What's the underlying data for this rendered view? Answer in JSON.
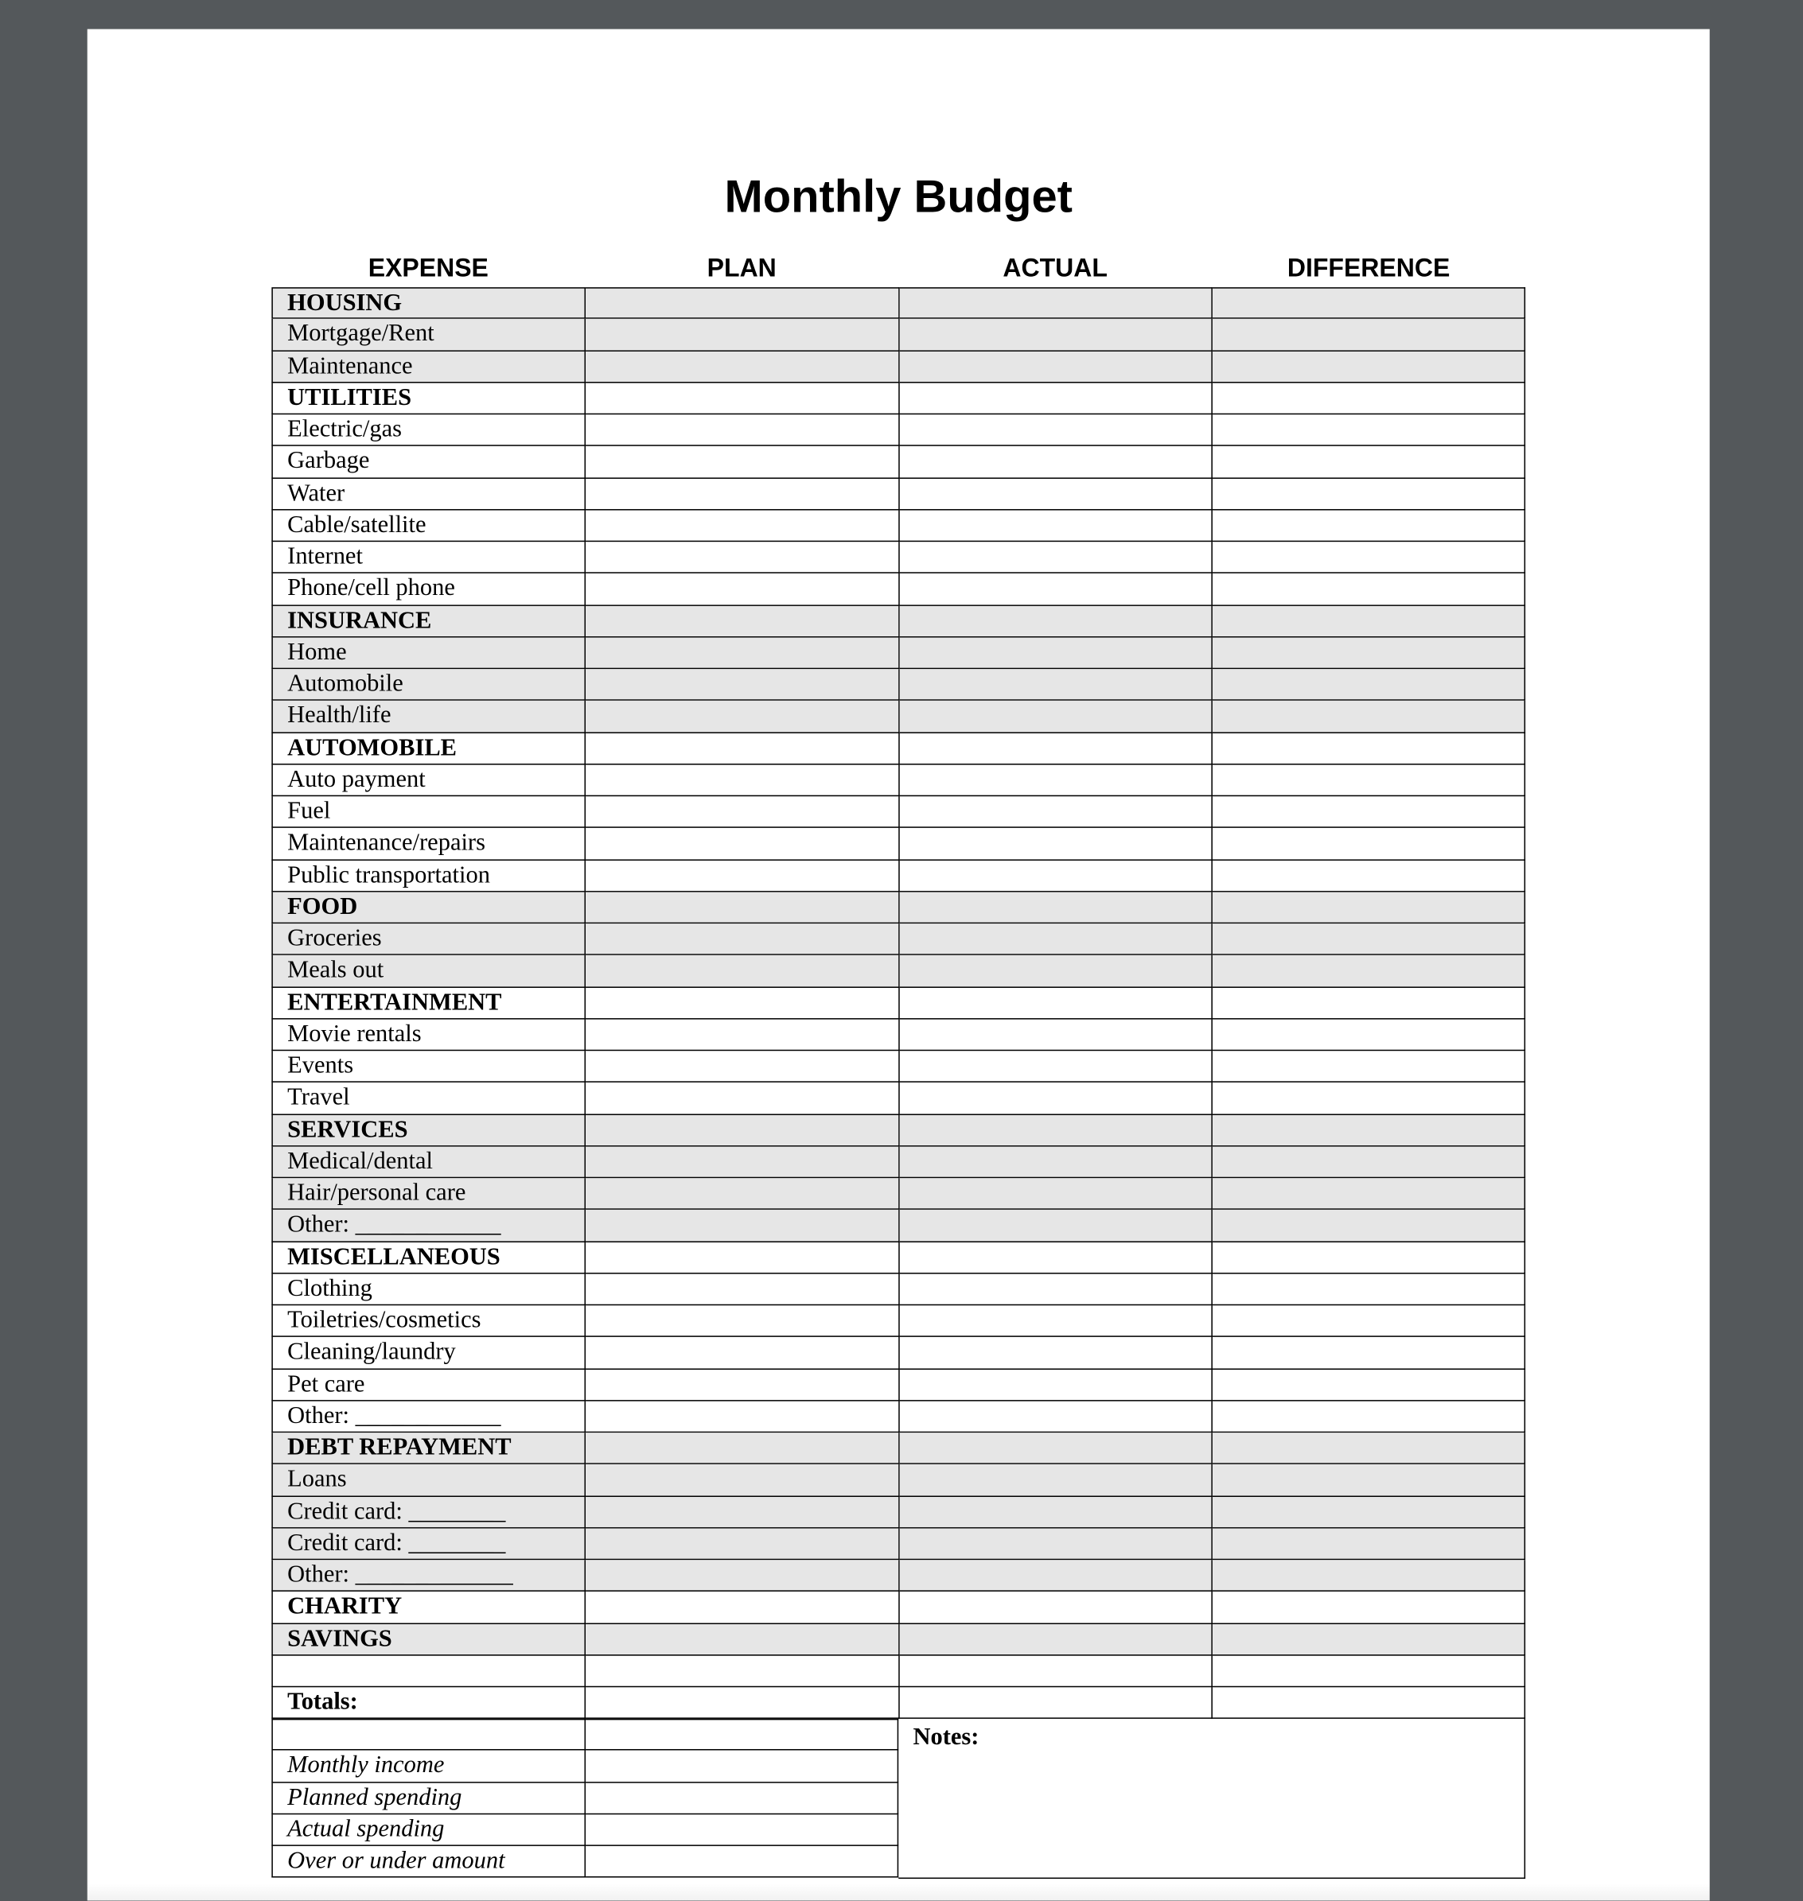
{
  "title": "Monthly Budget",
  "columns": [
    "EXPENSE",
    "PLAN",
    "ACTUAL",
    "DIFFERENCE"
  ],
  "shade_color": "#e6e6e6",
  "sections": [
    {
      "heading": "HOUSING",
      "shaded": true,
      "items": [
        "Mortgage/Rent",
        "Maintenance"
      ]
    },
    {
      "heading": "UTILITIES",
      "shaded": false,
      "items": [
        "Electric/gas",
        "Garbage",
        "Water",
        "Cable/satellite",
        "Internet",
        "Phone/cell phone"
      ]
    },
    {
      "heading": "INSURANCE",
      "shaded": true,
      "items": [
        "Home",
        "Automobile",
        "Health/life"
      ]
    },
    {
      "heading": "AUTOMOBILE",
      "shaded": false,
      "items": [
        "Auto payment",
        "Fuel",
        "Maintenance/repairs",
        "Public transportation"
      ]
    },
    {
      "heading": "FOOD",
      "shaded": true,
      "items": [
        "Groceries",
        "Meals out"
      ]
    },
    {
      "heading": "ENTERTAINMENT",
      "shaded": false,
      "items": [
        "Movie rentals",
        "Events",
        "Travel"
      ]
    },
    {
      "heading": "SERVICES",
      "shaded": true,
      "items": [
        "Medical/dental",
        "Hair/personal care",
        "Other: ____________"
      ]
    },
    {
      "heading": "MISCELLANEOUS",
      "shaded": false,
      "items": [
        "Clothing",
        "Toiletries/cosmetics",
        "Cleaning/laundry",
        "Pet care",
        "Other: ____________"
      ]
    },
    {
      "heading": "DEBT REPAYMENT",
      "shaded": true,
      "items": [
        "Loans",
        "Credit card: ________",
        "Credit card: ________",
        "Other: _____________"
      ]
    },
    {
      "heading": "CHARITY",
      "shaded": false,
      "items": []
    },
    {
      "heading": "SAVINGS",
      "shaded": true,
      "items": []
    }
  ],
  "totals_label": "Totals:",
  "summary": [
    "",
    "Monthly income",
    "Planned spending",
    "Actual spending",
    "Over or under amount"
  ],
  "notes_label": "Notes:"
}
